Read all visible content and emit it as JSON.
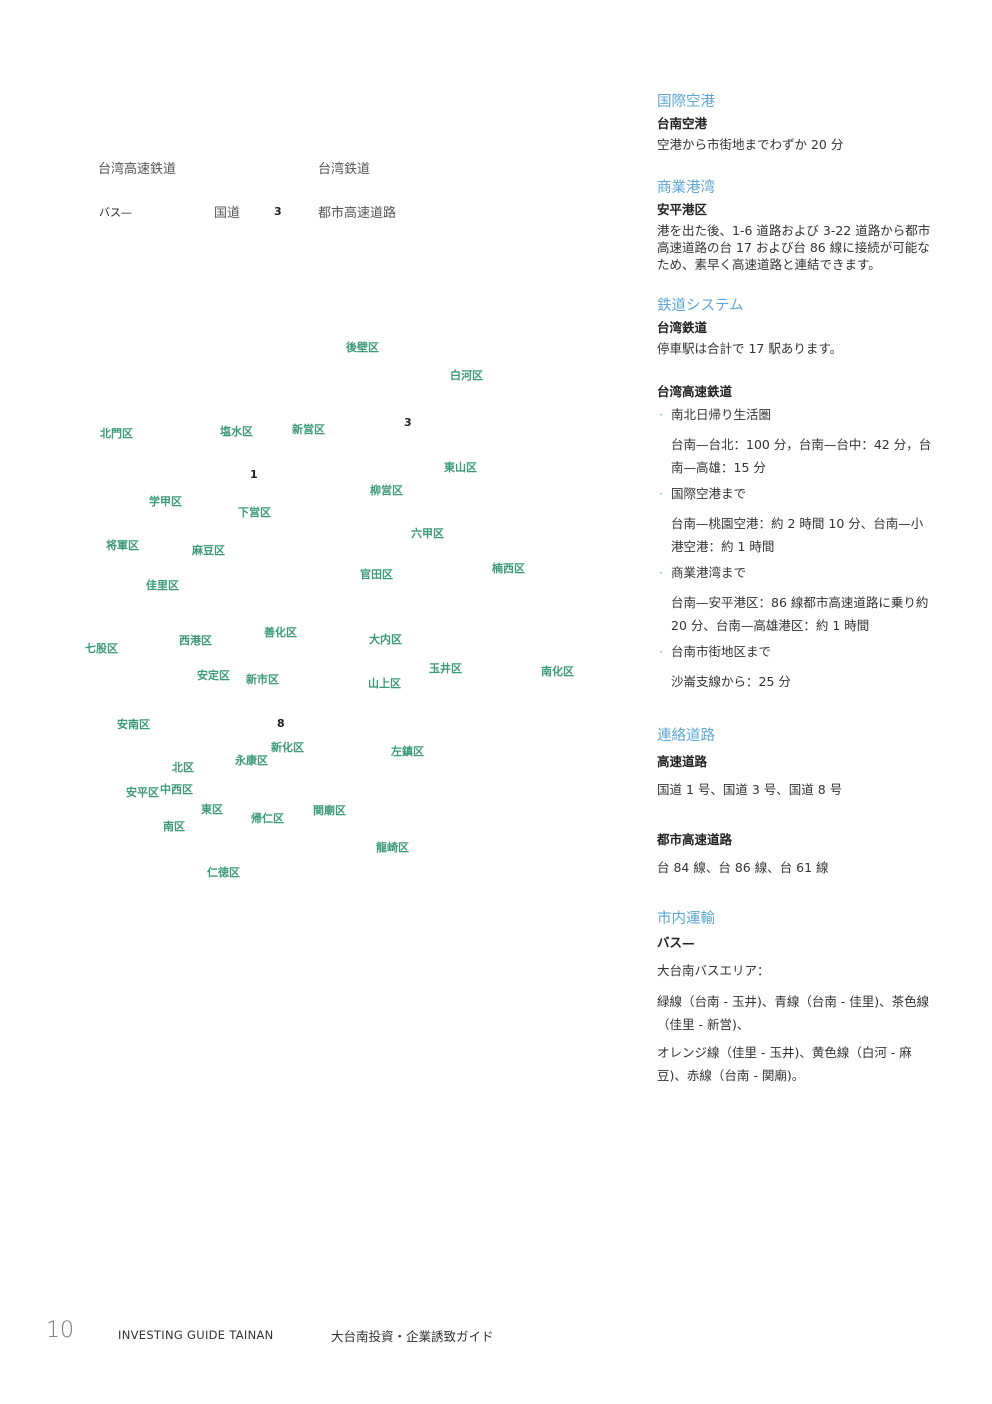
{
  "legend": {
    "hsr": "台湾高速鉄道",
    "tra": "台湾鉄道",
    "bus": "バス—",
    "national_road": "国道",
    "national_road_num": "3",
    "expressway": "都市高速道路"
  },
  "map": {
    "districts": [
      "後壁区",
      "白河区",
      "北門区",
      "塩水区",
      "新営区",
      "東山区",
      "柳営区",
      "学甲区",
      "下営区",
      "六甲区",
      "将軍区",
      "麻豆区",
      "官田区",
      "楠西区",
      "佳里区",
      "善化区",
      "西港区",
      "大内区",
      "七股区",
      "玉井区",
      "南化区",
      "安定区",
      "新市区",
      "山上区",
      "安南区",
      "新化区",
      "永康区",
      "左鎮区",
      "北区",
      "安平区",
      "中西区",
      "東区",
      "関廟区",
      "帰仁区",
      "南区",
      "龍崎区",
      "仁徳区"
    ],
    "route_numbers": [
      "3",
      "1",
      "8"
    ]
  },
  "sections": {
    "airport": {
      "title": "国際空港",
      "name": "台南空港",
      "desc": "空港から市街地までわずか 20 分"
    },
    "harbor": {
      "title": "商業港湾",
      "name": "安平港区",
      "desc": "港を出た後、1-6 道路および 3-22 道路から都市高速道路の台 17 および台 86 線に接続が可能なため、素早く高速道路と連結できます。"
    },
    "rail": {
      "title": "鉄道システム",
      "tra_name": "台湾鉄道",
      "tra_desc": "停車駅は合計で 17 駅あります。",
      "hsr_name": "台湾高速鉄道",
      "bullets": [
        {
          "label": "南北日帰り生活圏",
          "detail": "台南—台北：100 分，台南—台中：42 分，台南—高雄：15 分"
        },
        {
          "label": "国際空港まで",
          "detail": "台南—桃園空港：約 2 時間 10 分、台南—小港空港：約 1 時間"
        },
        {
          "label": "商業港湾まで",
          "detail": "台南—安平港区：86 線都市高速道路に乗り約 20 分、台南—高雄港区：約 1 時間"
        },
        {
          "label": "台南市街地区まで",
          "detail": "沙崙支線から：25 分"
        }
      ]
    },
    "roads": {
      "title": "連絡道路",
      "highway_name": "高速道路",
      "highway_desc": "国道 1 号、国道 3 号、国道 8 号",
      "expressway_name": "都市高速道路",
      "expressway_desc": "台 84 線、台 86 線、台 61 線"
    },
    "transit": {
      "title": "市内運輸",
      "bus_name": "バス—",
      "area": "大台南バスエリア：",
      "line1": "緑線（台南 - 玉井)、青線（台南 - 佳里)、茶色線（佳里 - 新営)、",
      "line2": "オレンジ線（佳里 - 玉井)、黄色線（白河 - 麻豆)、赤線（台南 - 関廟)。"
    }
  },
  "footer": {
    "page": "10",
    "en": "INVESTING GUIDE TAINAN",
    "jp": "大台南投資・企業誘致ガイド"
  },
  "colors": {
    "accent": "#5ea6d4",
    "district": "#3d9a78"
  }
}
